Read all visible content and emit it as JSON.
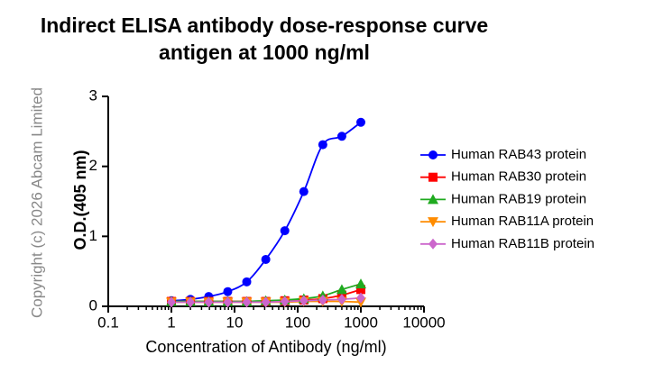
{
  "chart_data": {
    "type": "line",
    "title": [
      "Indirect ELISA antibody dose-response curve",
      "antigen at 1000 ng/ml"
    ],
    "xlabel": "Concentration of Antibody (ng/ml)",
    "ylabel": "O.D.(405 nm)",
    "annotation": "Copyright (c) 2026 Abcam Limited",
    "x": [
      1,
      2,
      3.9,
      7.8,
      15.6,
      31.25,
      62.5,
      125,
      250,
      500,
      1000
    ],
    "xscale": "log",
    "xlim": [
      0.1,
      10000
    ],
    "xticks": [
      0.1,
      1,
      10,
      100,
      1000,
      10000
    ],
    "ylim": [
      0,
      3
    ],
    "yticks": [
      0,
      1,
      2,
      3
    ],
    "legend": "right",
    "series": [
      {
        "name": "Human RAB43 protein",
        "color": "#0000ff",
        "marker": "circle",
        "values": [
          0.08,
          0.1,
          0.14,
          0.21,
          0.35,
          0.67,
          1.08,
          1.64,
          2.31,
          2.43,
          2.63
        ]
      },
      {
        "name": "Human RAB30 protein",
        "color": "#ff0000",
        "marker": "square",
        "values": [
          0.07,
          0.07,
          0.07,
          0.07,
          0.07,
          0.07,
          0.08,
          0.09,
          0.11,
          0.16,
          0.24
        ]
      },
      {
        "name": "Human RAB19 protein",
        "color": "#1faa1f",
        "marker": "triangle-up",
        "values": [
          0.07,
          0.07,
          0.07,
          0.07,
          0.07,
          0.08,
          0.09,
          0.11,
          0.15,
          0.24,
          0.32
        ]
      },
      {
        "name": "Human RAB11A protein",
        "color": "#ff8c00",
        "marker": "triangle-down",
        "values": [
          0.06,
          0.06,
          0.06,
          0.06,
          0.06,
          0.06,
          0.06,
          0.07,
          0.07,
          0.07,
          0.06
        ]
      },
      {
        "name": "Human RAB11B protein",
        "color": "#cc66cc",
        "marker": "diamond",
        "values": [
          0.06,
          0.06,
          0.06,
          0.06,
          0.06,
          0.06,
          0.07,
          0.08,
          0.09,
          0.1,
          0.12
        ]
      }
    ]
  }
}
